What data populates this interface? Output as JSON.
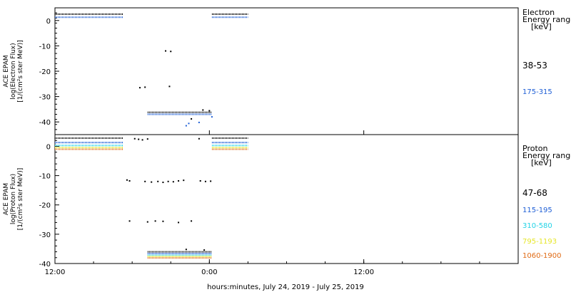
{
  "xlabel": "hours:minutes, July 24, 2019 - July 25, 2019",
  "x_ticks": [
    "12:00",
    "0:00",
    "12:00"
  ],
  "colors": {
    "black": "#000000",
    "blue": "#1f5fd6",
    "cyan": "#22d3e6",
    "yellow": "#e6e62a",
    "orange": "#e06a14"
  },
  "chart_data": [
    {
      "type": "scatter",
      "panel": "electron",
      "ylabel_lines": [
        "ACE EPAM",
        "log(Electron Flux)",
        "[1/(cm²s ster MeV)]"
      ],
      "ylim": [
        -45,
        5
      ],
      "y_ticks": [
        0,
        -10,
        -20,
        -30,
        -40
      ],
      "xlim_hours": [
        0,
        36
      ],
      "legend_title_lines": [
        "Electron",
        "Energy range",
        "[keV]"
      ],
      "series": [
        {
          "name": "38-53",
          "color": "black",
          "segments": [
            {
              "x_start": 0,
              "x_end": 5.3,
              "y": 2.5
            },
            {
              "x_start": 12.2,
              "x_end": 15.0,
              "y": 2.5
            },
            {
              "x_start": 7.2,
              "x_end": 12.2,
              "y": -36.2
            }
          ],
          "points": [
            {
              "x": 6.6,
              "y": -26.5
            },
            {
              "x": 7.0,
              "y": -26.3
            },
            {
              "x": 8.6,
              "y": -12.0
            },
            {
              "x": 9.0,
              "y": -12.2
            },
            {
              "x": 8.9,
              "y": -26.0
            },
            {
              "x": 10.6,
              "y": -38.8
            },
            {
              "x": 11.5,
              "y": -35.3
            },
            {
              "x": 12.0,
              "y": -35.6
            }
          ]
        },
        {
          "name": "175-315",
          "color": "blue",
          "segments": [
            {
              "x_start": 0,
              "x_end": 5.3,
              "y": 1.3
            },
            {
              "x_start": 12.2,
              "x_end": 15.0,
              "y": 1.3
            },
            {
              "x_start": 7.2,
              "x_end": 12.2,
              "y": -37.0
            }
          ],
          "points": [
            {
              "x": 10.2,
              "y": -41.5
            },
            {
              "x": 10.4,
              "y": -40.6
            },
            {
              "x": 11.2,
              "y": -40.2
            },
            {
              "x": 12.2,
              "y": -38.0
            }
          ]
        }
      ]
    },
    {
      "type": "scatter",
      "panel": "proton",
      "ylabel_lines": [
        "ACE EPAM",
        "log(Proton Flux)",
        "[1/(cm²s ster MeV)]"
      ],
      "ylim": [
        -40,
        4
      ],
      "y_ticks": [
        0,
        -10,
        -20,
        -30,
        -40
      ],
      "xlim_hours": [
        0,
        36
      ],
      "legend_title_lines": [
        "Proton",
        "Energy range",
        "[keV]"
      ],
      "series": [
        {
          "name": "47-68",
          "color": "black",
          "segments": [
            {
              "x_start": 0,
              "x_end": 5.3,
              "y": 2.8
            },
            {
              "x_start": 12.2,
              "x_end": 15.0,
              "y": 2.8
            },
            {
              "x_start": 7.2,
              "x_end": 12.2,
              "y": -36.0
            }
          ],
          "points": [
            {
              "x": 6.2,
              "y": 2.6
            },
            {
              "x": 6.5,
              "y": 2.4
            },
            {
              "x": 6.8,
              "y": 2.2
            },
            {
              "x": 7.2,
              "y": 2.5
            },
            {
              "x": 11.2,
              "y": 2.6
            },
            {
              "x": 5.6,
              "y": -11.5
            },
            {
              "x": 5.8,
              "y": -11.8
            },
            {
              "x": 7.0,
              "y": -12.0
            },
            {
              "x": 7.5,
              "y": -12.2
            },
            {
              "x": 8.0,
              "y": -12.0
            },
            {
              "x": 8.4,
              "y": -12.3
            },
            {
              "x": 8.8,
              "y": -12.0
            },
            {
              "x": 9.2,
              "y": -12.1
            },
            {
              "x": 9.6,
              "y": -11.8
            },
            {
              "x": 10.0,
              "y": -11.6
            },
            {
              "x": 11.3,
              "y": -11.8
            },
            {
              "x": 11.7,
              "y": -12.0
            },
            {
              "x": 12.1,
              "y": -11.9
            },
            {
              "x": 5.8,
              "y": -25.5
            },
            {
              "x": 7.2,
              "y": -25.8
            },
            {
              "x": 7.8,
              "y": -25.5
            },
            {
              "x": 8.4,
              "y": -25.6
            },
            {
              "x": 9.6,
              "y": -26.0
            },
            {
              "x": 10.6,
              "y": -25.5
            },
            {
              "x": 10.2,
              "y": -35.2
            },
            {
              "x": 11.6,
              "y": -35.4
            }
          ]
        },
        {
          "name": "115-195",
          "color": "blue",
          "segments": [
            {
              "x_start": 0,
              "x_end": 5.3,
              "y": 1.3
            },
            {
              "x_start": 12.2,
              "x_end": 15.0,
              "y": 1.3
            },
            {
              "x_start": 7.2,
              "x_end": 12.2,
              "y": -36.6
            }
          ],
          "points": []
        },
        {
          "name": "310-580",
          "color": "cyan",
          "segments": [
            {
              "x_start": 0,
              "x_end": 5.3,
              "y": 0.3
            },
            {
              "x_start": 12.2,
              "x_end": 15.0,
              "y": 0.3
            },
            {
              "x_start": 7.2,
              "x_end": 12.2,
              "y": -37.2
            }
          ],
          "points": []
        },
        {
          "name": "795-1193",
          "color": "yellow",
          "segments": [
            {
              "x_start": 0,
              "x_end": 5.3,
              "y": -0.4
            },
            {
              "x_start": 12.2,
              "x_end": 15.0,
              "y": -0.4
            },
            {
              "x_start": 7.2,
              "x_end": 12.2,
              "y": -37.6
            }
          ],
          "points": []
        },
        {
          "name": "1060-1900",
          "color": "orange",
          "segments": [
            {
              "x_start": 0,
              "x_end": 5.3,
              "y": -1.0
            },
            {
              "x_start": 12.2,
              "x_end": 15.0,
              "y": -1.0
            },
            {
              "x_start": 7.2,
              "x_end": 12.2,
              "y": -38.1
            }
          ],
          "points": []
        }
      ]
    }
  ]
}
